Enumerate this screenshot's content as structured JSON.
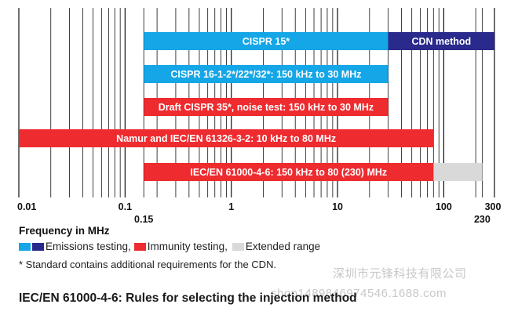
{
  "chart_data": {
    "type": "bar",
    "orientation": "horizontal-ranges",
    "x_scale": "log",
    "xlim": [
      0.01,
      300
    ],
    "xlabel": "Frequency in MHz",
    "x_ticks": [
      "0.01",
      "0.1",
      "0.15",
      "1",
      "10",
      "100",
      "230",
      "300"
    ],
    "grid": true,
    "bars": [
      {
        "label": "CISPR 15*",
        "start": 0.15,
        "end": 30,
        "category": "emissions",
        "color": "#14a6e6"
      },
      {
        "label": "CDN method",
        "start": 30,
        "end": 300,
        "category": "emissions_dark",
        "color": "#2a2a8c"
      },
      {
        "label": "CISPR 16-1-2*/22*/32*: 150 kHz to 30 MHz",
        "start": 0.15,
        "end": 30,
        "category": "emissions",
        "color": "#14a6e6"
      },
      {
        "label": "Draft CISPR 35*, noise test: 150 kHz to 30 MHz",
        "start": 0.15,
        "end": 30,
        "category": "immunity",
        "color": "#ee2b2f"
      },
      {
        "label": "Namur and  IEC/EN 61326-3-2: 10 kHz to 80 MHz",
        "start": 0.01,
        "end": 80,
        "category": "immunity",
        "color": "#ee2b2f"
      },
      {
        "label": "IEC/EN 61000-4-6: 150 kHz to 80 (230) MHz",
        "start": 0.15,
        "end": 80,
        "category": "immunity",
        "color": "#ee2b2f"
      },
      {
        "label": "",
        "start": 80,
        "end": 230,
        "category": "extended",
        "color": "#d9d9d9"
      }
    ],
    "legend": [
      {
        "text": "Emissions testing,",
        "colors": [
          "#14a6e6",
          "#2a2a8c"
        ]
      },
      {
        "text": "Immunity testing,",
        "colors": [
          "#ee2b2f"
        ]
      },
      {
        "text": "Extended range",
        "colors": [
          "#d9d9d9"
        ]
      }
    ]
  },
  "footnote": "* Standard contains additional requirements for the CDN.",
  "caption": "IEC/EN 61000-4-6: Rules for selecting the injection method",
  "watermark": {
    "line1": "深圳市元锋科技有限公司",
    "line2": "shop1489846974546.1688.com"
  },
  "colors": {
    "emissions": "#14a6e6",
    "emissions_dark": "#2a2a8c",
    "immunity": "#ee2b2f",
    "extended": "#d9d9d9"
  }
}
